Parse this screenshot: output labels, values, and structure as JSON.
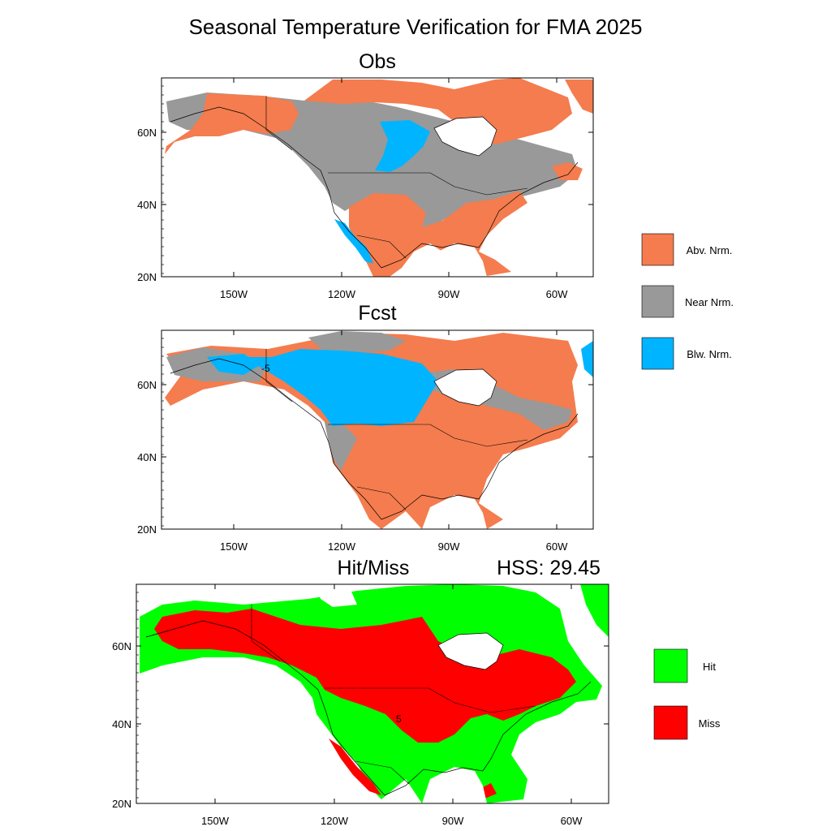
{
  "title": "Seasonal Temperature Verification for FMA 2025",
  "panels": {
    "obs": {
      "title": "Obs"
    },
    "fcst": {
      "title": "Fcst",
      "contour_label": "-5"
    },
    "hitmiss": {
      "title": "Hit/Miss",
      "score": "HSS: 29.45",
      "contour_label": "5"
    }
  },
  "axis": {
    "lat_ticks": [
      "60N",
      "40N",
      "20N"
    ],
    "lon_ticks": [
      "150W",
      "120W",
      "90W",
      "60W"
    ]
  },
  "legend_categories": [
    {
      "label": "Abv. Nrm.",
      "color": "#f47c4e"
    },
    {
      "label": "Near Nrm.",
      "color": "#999999"
    },
    {
      "label": "Blw. Nrm.",
      "color": "#00b4ff"
    }
  ],
  "legend_hitmiss": [
    {
      "label": "Hit",
      "color": "#00ff00"
    },
    {
      "label": "Miss",
      "color": "#ff0000"
    }
  ],
  "colors": {
    "abv": "#f47c4e",
    "near": "#999999",
    "blw": "#00b4ff",
    "hit": "#00ff00",
    "miss": "#ff0000"
  }
}
